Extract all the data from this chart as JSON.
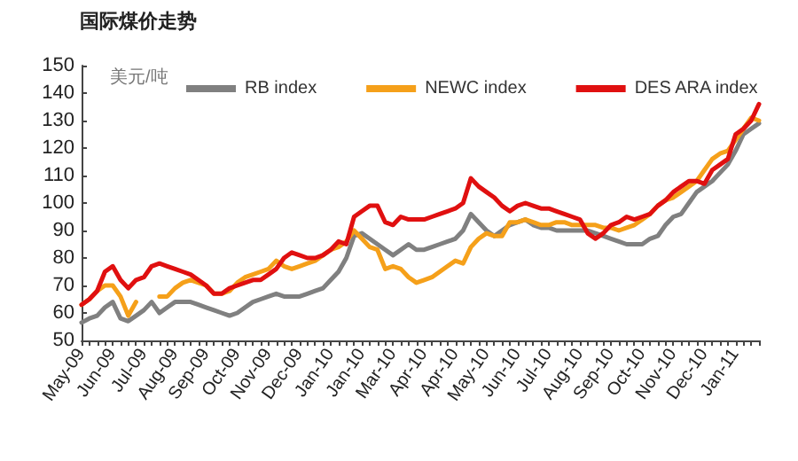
{
  "chart_data": {
    "type": "line",
    "title": "国际煤价走势",
    "ylabel": "美元/吨",
    "categories": [
      "May-09",
      null,
      null,
      null,
      "Jun-09",
      null,
      null,
      null,
      "Jul-09",
      null,
      null,
      null,
      "Aug-09",
      null,
      null,
      null,
      "Sep-09",
      null,
      null,
      null,
      "Oct-09",
      null,
      null,
      null,
      "Nov-09",
      null,
      null,
      null,
      "Dec-09",
      null,
      null,
      null,
      "Jan-10",
      null,
      null,
      null,
      "Jan-10",
      null,
      null,
      null,
      "Mar-10",
      null,
      null,
      null,
      "Apr-10",
      null,
      null,
      null,
      "Apr-10",
      null,
      null,
      null,
      "May-10",
      null,
      null,
      null,
      "Jun-10",
      null,
      null,
      null,
      "Jul-10",
      null,
      null,
      null,
      "Aug-10",
      null,
      null,
      null,
      "Sep-10",
      null,
      null,
      null,
      "Oct-10",
      null,
      null,
      null,
      "Nov-10",
      null,
      null,
      null,
      "Dec-10",
      null,
      null,
      null,
      "Jan-11",
      null,
      null,
      null
    ],
    "series": [
      {
        "name": "RB index",
        "color": "#808080",
        "values": [
          56.5,
          58,
          59,
          62,
          64,
          58,
          57,
          59,
          61,
          64,
          60,
          62,
          64,
          64,
          64,
          63,
          62,
          61,
          60,
          59,
          60,
          62,
          64,
          65,
          66,
          67,
          66,
          66,
          66,
          67,
          68,
          69,
          72,
          75,
          80,
          88,
          89,
          87,
          85,
          83,
          81,
          83,
          85,
          83,
          83,
          84,
          85,
          86,
          87,
          90,
          96,
          93,
          90,
          88,
          90,
          92,
          93,
          94,
          92,
          91,
          91,
          90,
          90,
          90,
          90,
          90,
          89,
          88,
          87,
          86,
          85,
          85,
          85,
          87,
          88,
          92,
          95,
          96,
          100,
          104,
          106,
          108,
          111,
          114,
          119,
          125,
          127,
          129
        ]
      },
      {
        "name": "NEWC index",
        "color": "#f5a01a",
        "values": [
          63,
          65,
          68,
          70,
          70,
          66,
          59,
          64,
          null,
          null,
          66,
          66,
          69,
          71,
          72,
          71,
          70,
          67,
          67,
          68,
          71,
          73,
          74,
          75,
          76,
          79,
          77,
          76,
          77,
          78,
          79,
          81,
          83,
          84,
          86,
          90,
          87,
          84,
          83,
          76,
          77,
          76,
          73,
          71,
          72,
          73,
          75,
          77,
          79,
          78,
          84,
          87,
          89,
          88,
          88,
          93,
          93,
          94,
          93,
          92,
          92,
          93,
          93,
          92,
          92,
          92,
          92,
          91,
          91,
          90,
          91,
          92,
          94,
          96,
          99,
          101,
          102,
          104,
          106,
          108,
          112,
          116,
          118,
          119,
          123,
          127,
          131,
          130
        ]
      },
      {
        "name": "DES ARA index",
        "color": "#e01010",
        "values": [
          63,
          65,
          68,
          75,
          77,
          72,
          69,
          72,
          73,
          77,
          78,
          77,
          76,
          75,
          74,
          72,
          70,
          67,
          67,
          69,
          70,
          71,
          72,
          72,
          74,
          76,
          80,
          82,
          81,
          80,
          80,
          81,
          83,
          86,
          85,
          95,
          97,
          99,
          99,
          93,
          92,
          95,
          94,
          94,
          94,
          95,
          96,
          97,
          98,
          100,
          109,
          106,
          104,
          102,
          99,
          97,
          99,
          100,
          99,
          98,
          98,
          97,
          96,
          95,
          94,
          89,
          87,
          89,
          92,
          93,
          95,
          94,
          95,
          96,
          99,
          101,
          104,
          106,
          108,
          108,
          107,
          112,
          114,
          116,
          125,
          127,
          130,
          136
        ]
      }
    ],
    "ylim": [
      50,
      150
    ],
    "yticks": [
      50,
      60,
      70,
      80,
      90,
      100,
      110,
      120,
      130,
      140,
      150
    ],
    "grid": false,
    "legend": "top",
    "marker": "none",
    "line_style": "solid"
  }
}
